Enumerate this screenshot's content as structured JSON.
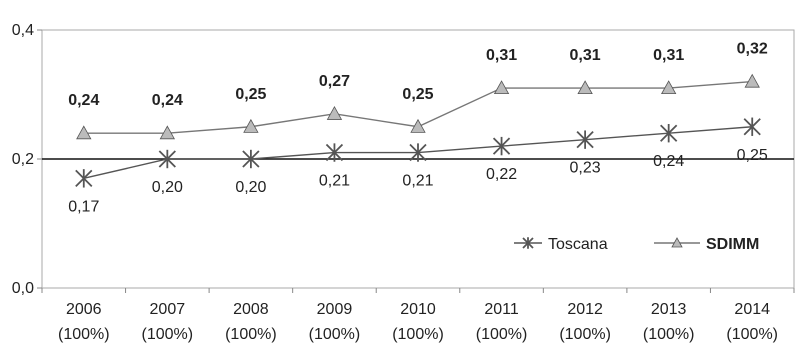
{
  "chart_data": {
    "type": "line",
    "categories": [
      "2006",
      "2007",
      "2008",
      "2009",
      "2010",
      "2011",
      "2012",
      "2013",
      "2014"
    ],
    "category_sublabels": [
      "(100%)",
      "(100%)",
      "(100%)",
      "(100%)",
      "(100%)",
      "(100%)",
      "(100%)",
      "(100%)",
      "(100%)"
    ],
    "y_ticks": [
      "0,0",
      "0,2",
      "0,4"
    ],
    "ylim": [
      0,
      0.4
    ],
    "grid": false,
    "legend_position": "bottom-right",
    "series": [
      {
        "name": "Toscana",
        "marker": "asterisk",
        "color": "#555555",
        "values": [
          0.17,
          0.2,
          0.2,
          0.21,
          0.21,
          0.22,
          0.23,
          0.24,
          0.25
        ],
        "labels": [
          "0,17",
          "0,20",
          "0,20",
          "0,21",
          "0,21",
          "0,22",
          "0,23",
          "0,24",
          "0,25"
        ]
      },
      {
        "name": "SDIMM",
        "marker": "triangle",
        "color": "#777777",
        "values": [
          0.24,
          0.24,
          0.25,
          0.27,
          0.25,
          0.31,
          0.31,
          0.31,
          0.32
        ],
        "labels": [
          "0,24",
          "0,24",
          "0,25",
          "0,27",
          "0,25",
          "0,31",
          "0,31",
          "0,31",
          "0,32"
        ]
      }
    ]
  }
}
